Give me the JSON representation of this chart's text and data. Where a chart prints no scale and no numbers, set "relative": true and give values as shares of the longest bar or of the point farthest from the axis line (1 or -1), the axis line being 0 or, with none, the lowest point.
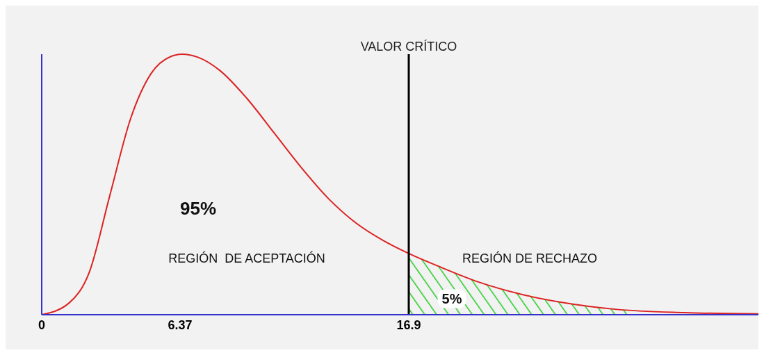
{
  "chart_data": {
    "type": "line",
    "relative": true,
    "xlim": [
      0,
      33
    ],
    "xticks": [
      0,
      6.37,
      16.9
    ],
    "legend": false,
    "grid": false,
    "marker": "none",
    "series": [
      {
        "color": "#dd2222",
        "x": [
          0,
          1.26,
          2.2,
          3.14,
          4.09,
          5.03,
          5.97,
          6.45,
          7.23,
          8.18,
          9.43,
          10.69,
          11.95,
          13.21,
          14.47,
          15.72,
          16.9,
          18.24,
          20.13,
          22.0,
          23.9,
          26.4,
          29.56,
          33
        ],
        "values": [
          0,
          0.045,
          0.165,
          0.459,
          0.752,
          0.925,
          0.992,
          1,
          0.987,
          0.939,
          0.832,
          0.699,
          0.565,
          0.445,
          0.352,
          0.285,
          0.235,
          0.187,
          0.125,
          0.08,
          0.048,
          0.021,
          0.008,
          0.003
        ]
      },
      {
        "type": "area",
        "color": "#22cc22",
        "x": [
          16.9,
          18.24,
          20.13,
          22.0,
          23.9,
          26.4,
          27.0
        ],
        "values": [
          0.235,
          0.187,
          0.125,
          0.08,
          0.048,
          0.021,
          0.018
        ]
      }
    ],
    "ref_lines": [
      {
        "axis": "x",
        "value": 16.9,
        "label": "VALOR CRÍTICO",
        "color": "#000000"
      }
    ],
    "annotations": [
      "95%",
      "REGIÓN  DE ACEPTACIÓN",
      "REGIÓN DE RECHAZO",
      "5%"
    ]
  }
}
